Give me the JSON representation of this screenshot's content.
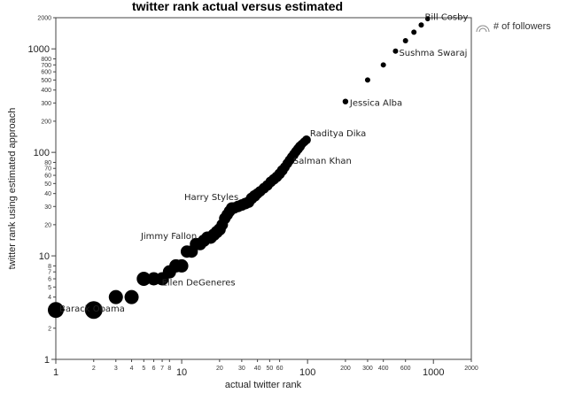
{
  "chart_data": {
    "type": "scatter",
    "title": "twitter rank actual versus estimated",
    "xlabel": "actual twitter rank",
    "ylabel": "twitter rank using estimated approach",
    "xscale": "log",
    "yscale": "log",
    "xlim": [
      1,
      2000
    ],
    "ylim": [
      1,
      2000
    ],
    "grid": false,
    "legend_position": "top-right",
    "legend": {
      "label": "# of followers",
      "icon": "bubble-size-icon"
    },
    "x_major_ticks": [
      {
        "value": 1,
        "label": "1"
      },
      {
        "value": 10,
        "label": "10"
      },
      {
        "value": 100,
        "label": "100"
      },
      {
        "value": 1000,
        "label": "1000"
      }
    ],
    "x_minor_ticks": [
      {
        "value": 2,
        "label": "2"
      },
      {
        "value": 3,
        "label": "3"
      },
      {
        "value": 4,
        "label": "4"
      },
      {
        "value": 5,
        "label": "5"
      },
      {
        "value": 6,
        "label": "6"
      },
      {
        "value": 7,
        "label": "7"
      },
      {
        "value": 8,
        "label": "8"
      },
      {
        "value": 20,
        "label": "20"
      },
      {
        "value": 30,
        "label": "30"
      },
      {
        "value": 40,
        "label": "40"
      },
      {
        "value": 50,
        "label": "50"
      },
      {
        "value": 60,
        "label": "60"
      },
      {
        "value": 200,
        "label": "200"
      },
      {
        "value": 300,
        "label": "300"
      },
      {
        "value": 400,
        "label": "400"
      },
      {
        "value": 600,
        "label": "600"
      },
      {
        "value": 2000,
        "label": "2000"
      }
    ],
    "y_major_ticks": [
      {
        "value": 1,
        "label": "1"
      },
      {
        "value": 10,
        "label": "10"
      },
      {
        "value": 100,
        "label": "100"
      },
      {
        "value": 1000,
        "label": "1000"
      }
    ],
    "y_minor_ticks": [
      {
        "value": 2,
        "label": "2"
      },
      {
        "value": 3,
        "label": "3"
      },
      {
        "value": 4,
        "label": "4"
      },
      {
        "value": 5,
        "label": "5"
      },
      {
        "value": 6,
        "label": "6"
      },
      {
        "value": 7,
        "label": "7"
      },
      {
        "value": 8,
        "label": "8"
      },
      {
        "value": 20,
        "label": "20"
      },
      {
        "value": 30,
        "label": "30"
      },
      {
        "value": 40,
        "label": "40"
      },
      {
        "value": 50,
        "label": "50"
      },
      {
        "value": 60,
        "label": "60"
      },
      {
        "value": 70,
        "label": "70"
      },
      {
        "value": 80,
        "label": "80"
      },
      {
        "value": 200,
        "label": "200"
      },
      {
        "value": 300,
        "label": "300"
      },
      {
        "value": 400,
        "label": "400"
      },
      {
        "value": 500,
        "label": "500"
      },
      {
        "value": 600,
        "label": "600"
      },
      {
        "value": 700,
        "label": "700"
      },
      {
        "value": 800,
        "label": "800"
      },
      {
        "value": 2000,
        "label": "2000"
      }
    ],
    "points": [
      {
        "x": 1,
        "y": 3,
        "size": 9
      },
      {
        "x": 2,
        "y": 3,
        "size": 10
      },
      {
        "x": 3,
        "y": 4,
        "size": 8
      },
      {
        "x": 4,
        "y": 4,
        "size": 8
      },
      {
        "x": 5,
        "y": 6,
        "size": 8
      },
      {
        "x": 6,
        "y": 6,
        "size": 7.5
      },
      {
        "x": 7,
        "y": 6,
        "size": 7.5
      },
      {
        "x": 8,
        "y": 7,
        "size": 7.5
      },
      {
        "x": 9,
        "y": 8,
        "size": 7.5
      },
      {
        "x": 10,
        "y": 8,
        "size": 7.5
      },
      {
        "x": 11,
        "y": 11,
        "size": 7
      },
      {
        "x": 12,
        "y": 11,
        "size": 7
      },
      {
        "x": 13,
        "y": 13,
        "size": 7
      },
      {
        "x": 14,
        "y": 13,
        "size": 7
      },
      {
        "x": 15,
        "y": 14,
        "size": 7
      },
      {
        "x": 16,
        "y": 15,
        "size": 7
      },
      {
        "x": 17,
        "y": 15,
        "size": 7
      },
      {
        "x": 18,
        "y": 16,
        "size": 7
      },
      {
        "x": 19,
        "y": 17,
        "size": 7
      },
      {
        "x": 20,
        "y": 18,
        "size": 7
      },
      {
        "x": 21,
        "y": 20,
        "size": 6.5
      },
      {
        "x": 22,
        "y": 23,
        "size": 6.5
      },
      {
        "x": 23,
        "y": 25,
        "size": 6.5
      },
      {
        "x": 24,
        "y": 27,
        "size": 6.5
      },
      {
        "x": 25,
        "y": 29,
        "size": 6.5
      },
      {
        "x": 26,
        "y": 29,
        "size": 6.5
      },
      {
        "x": 28,
        "y": 30,
        "size": 6.5
      },
      {
        "x": 30,
        "y": 31,
        "size": 6.5
      },
      {
        "x": 32,
        "y": 32,
        "size": 6.5
      },
      {
        "x": 34,
        "y": 33,
        "size": 6.5
      },
      {
        "x": 36,
        "y": 36,
        "size": 6.5
      },
      {
        "x": 38,
        "y": 38,
        "size": 6.5
      },
      {
        "x": 40,
        "y": 40,
        "size": 6
      },
      {
        "x": 42,
        "y": 42,
        "size": 6
      },
      {
        "x": 45,
        "y": 45,
        "size": 6
      },
      {
        "x": 48,
        "y": 48,
        "size": 6
      },
      {
        "x": 51,
        "y": 52,
        "size": 6
      },
      {
        "x": 54,
        "y": 55,
        "size": 6
      },
      {
        "x": 57,
        "y": 58,
        "size": 6
      },
      {
        "x": 60,
        "y": 62,
        "size": 6
      },
      {
        "x": 63,
        "y": 67,
        "size": 6
      },
      {
        "x": 66,
        "y": 72,
        "size": 5.5
      },
      {
        "x": 69,
        "y": 78,
        "size": 5.5
      },
      {
        "x": 72,
        "y": 84,
        "size": 5.5
      },
      {
        "x": 75,
        "y": 90,
        "size": 5.5
      },
      {
        "x": 78,
        "y": 96,
        "size": 5.5
      },
      {
        "x": 81,
        "y": 102,
        "size": 5.5
      },
      {
        "x": 84,
        "y": 108,
        "size": 5.5
      },
      {
        "x": 87,
        "y": 114,
        "size": 5.5
      },
      {
        "x": 90,
        "y": 120,
        "size": 5
      },
      {
        "x": 94,
        "y": 126,
        "size": 5
      },
      {
        "x": 98,
        "y": 132,
        "size": 5
      },
      {
        "x": 200,
        "y": 310,
        "size": 3.2
      },
      {
        "x": 300,
        "y": 500,
        "size": 3
      },
      {
        "x": 400,
        "y": 700,
        "size": 3
      },
      {
        "x": 500,
        "y": 950,
        "size": 3
      },
      {
        "x": 600,
        "y": 1200,
        "size": 3
      },
      {
        "x": 700,
        "y": 1450,
        "size": 3
      },
      {
        "x": 800,
        "y": 1700,
        "size": 3
      },
      {
        "x": 900,
        "y": 1950,
        "size": 2.8
      }
    ],
    "annotations": [
      {
        "text": "Barack Obama",
        "x": 1,
        "y": 3
      },
      {
        "text": "Ellen DeGeneres",
        "x": 9,
        "y": 8
      },
      {
        "text": "Jimmy Fallon",
        "x": 11,
        "y": 11
      },
      {
        "text": "Harry Styles",
        "x": 26,
        "y": 29
      },
      {
        "text": "Salman Khan",
        "x": 72,
        "y": 84
      },
      {
        "text": "Raditya Dika",
        "x": 98,
        "y": 132
      },
      {
        "text": "Jessica Alba",
        "x": 200,
        "y": 310
      },
      {
        "text": "Sushma Swaraj",
        "x": 500,
        "y": 950
      },
      {
        "text": "Bill Cosby",
        "x": 800,
        "y": 1700
      }
    ]
  },
  "colors": {
    "point": "#000000",
    "frame": "#444444",
    "text": "#222222",
    "legend_icon": "#888888"
  }
}
